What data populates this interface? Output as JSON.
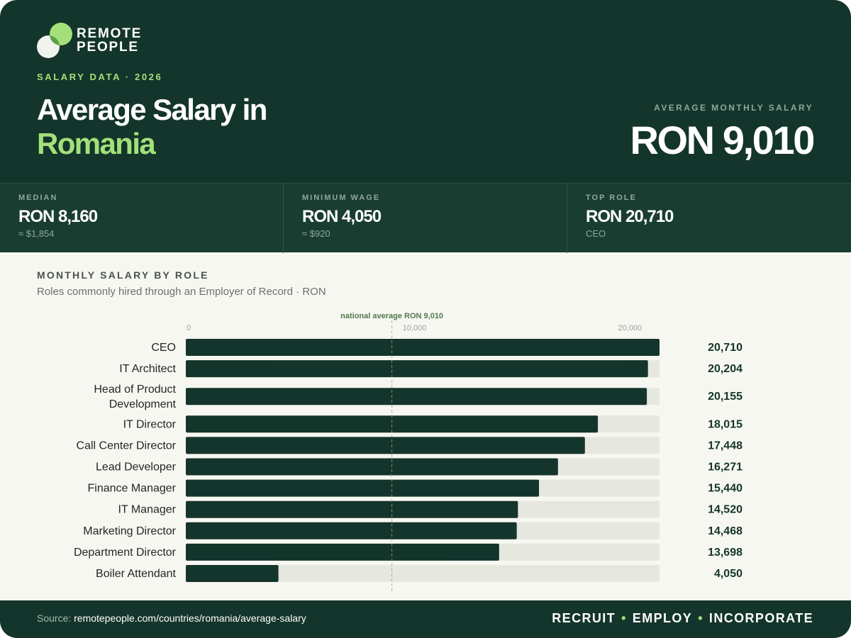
{
  "brand": {
    "line1": "REMOTE",
    "line2": "PEOPLE"
  },
  "eyebrow": "SALARY DATA · 2026",
  "title": {
    "line1": "Average Salary in",
    "line2": "Romania"
  },
  "average": {
    "label": "AVERAGE MONTHLY SALARY",
    "value": "RON 9,010"
  },
  "stats": [
    {
      "label": "MEDIAN",
      "value": "RON 8,160",
      "sub": "≈ $1,854"
    },
    {
      "label": "MINIMUM WAGE",
      "value": "RON 4,050",
      "sub": "≈ $920"
    },
    {
      "label": "TOP ROLE",
      "value": "RON 20,710",
      "sub": "CEO"
    }
  ],
  "colors": {
    "dark": "#14352b",
    "accent": "#a3e07a",
    "bar": "#14352b",
    "track": "#e6e7df",
    "avg_line": "#9aa19c",
    "avg_label": "#4f7a4a"
  },
  "chart_data": {
    "type": "bar",
    "orientation": "horizontal",
    "title": "MONTHLY SALARY BY ROLE",
    "subtitle": "Roles commonly hired through an Employer of Record · RON",
    "categories": [
      "CEO",
      "IT Architect",
      "Head of Product Development",
      "IT Director",
      "Call Center Director",
      "Lead Developer",
      "Finance Manager",
      "IT Manager",
      "Marketing Director",
      "Department Director",
      "Boiler Attendant"
    ],
    "values": [
      20710,
      20204,
      20155,
      18015,
      17448,
      16271,
      15440,
      14520,
      14468,
      13698,
      4050
    ],
    "value_labels": [
      "20,710",
      "20,204",
      "20,155",
      "18,015",
      "17,448",
      "16,271",
      "15,440",
      "14,520",
      "14,468",
      "13,698",
      "4,050"
    ],
    "ticks": [
      0,
      10000,
      20000
    ],
    "tick_labels": [
      "0",
      "10,000",
      "20,000"
    ],
    "xlim": [
      0,
      20710
    ],
    "reference_line": {
      "value": 9010,
      "label": "national average RON 9,010"
    }
  },
  "footer": {
    "source_prefix": "Source:",
    "source_url": "remotepeople.com/countries/romania/average-salary",
    "tagline": [
      "RECRUIT",
      "EMPLOY",
      "INCORPORATE"
    ]
  }
}
